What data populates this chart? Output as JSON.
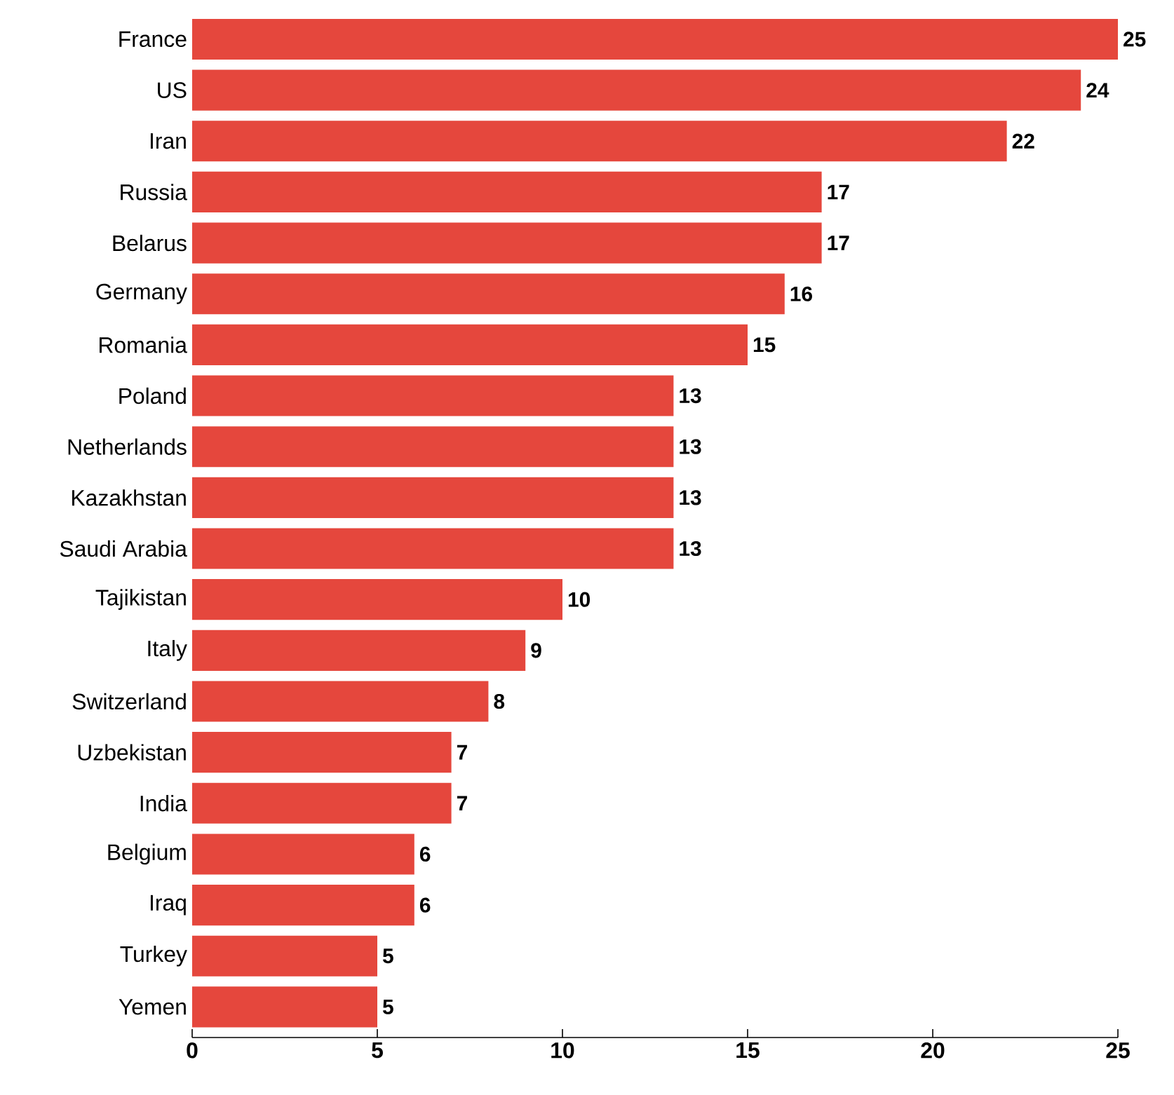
{
  "chart_data": {
    "type": "bar",
    "orientation": "horizontal",
    "categories": [
      "France",
      "US",
      "Iran",
      "Russia",
      "Belarus",
      "Germany",
      "Romania",
      "Poland",
      "Netherlands",
      "Kazakhstan",
      "Saudi Arabia",
      "Tajikistan",
      "Italy",
      "Switzerland",
      "Uzbekistan",
      "India",
      "Belgium",
      "Iraq",
      "Turkey",
      "Yemen"
    ],
    "values": [
      25,
      24,
      22,
      17,
      17,
      16,
      15,
      13,
      13,
      13,
      13,
      10,
      9,
      8,
      7,
      7,
      6,
      6,
      5,
      5
    ],
    "color": "#e5473d",
    "xlim": [
      0,
      25
    ],
    "xticks": [
      0,
      5,
      10,
      15,
      20,
      25
    ],
    "data_labels": true,
    "grid": false
  }
}
